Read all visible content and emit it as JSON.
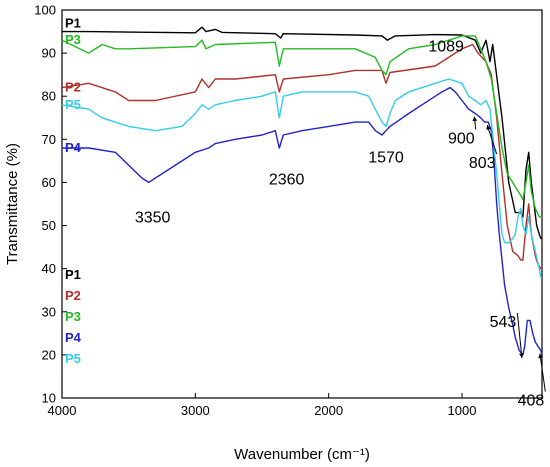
{
  "chart_data": {
    "type": "line",
    "xlabel": "Wavenumber (cm⁻¹)",
    "ylabel": "Transmittance (%)",
    "xlim": [
      4000,
      400
    ],
    "ylim": [
      10,
      100
    ],
    "x_reversed": true,
    "xticks": [
      4000,
      3000,
      2000,
      1000
    ],
    "yticks": [
      10,
      20,
      30,
      40,
      50,
      60,
      70,
      80,
      90,
      100
    ],
    "grid": false,
    "legend_position": "left-middle",
    "series": [
      {
        "name": "P1",
        "color": "#000000",
        "points": [
          [
            4000,
            95
          ],
          [
            3800,
            95
          ],
          [
            3000,
            94.7
          ],
          [
            2950,
            96
          ],
          [
            2920,
            95
          ],
          [
            2850,
            95.5
          ],
          [
            2800,
            94.8
          ],
          [
            2400,
            94.5
          ],
          [
            2360,
            93.5
          ],
          [
            2340,
            94.5
          ],
          [
            1800,
            94.2
          ],
          [
            1600,
            94
          ],
          [
            1560,
            93
          ],
          [
            1500,
            94
          ],
          [
            1200,
            94.3
          ],
          [
            1000,
            94.2
          ],
          [
            900,
            93
          ],
          [
            860,
            90
          ],
          [
            820,
            93
          ],
          [
            790,
            88
          ],
          [
            770,
            92
          ],
          [
            700,
            75
          ],
          [
            650,
            60
          ],
          [
            600,
            53
          ],
          [
            560,
            53
          ],
          [
            543,
            52
          ],
          [
            520,
            63
          ],
          [
            500,
            67
          ],
          [
            480,
            60
          ],
          [
            440,
            50
          ],
          [
            420,
            48
          ],
          [
            408,
            47
          ],
          [
            400,
            47
          ]
        ]
      },
      {
        "name": "P2",
        "color": "#b0302a",
        "points": [
          [
            4000,
            82
          ],
          [
            3800,
            83
          ],
          [
            3600,
            81
          ],
          [
            3500,
            79
          ],
          [
            3300,
            79
          ],
          [
            3000,
            81
          ],
          [
            2950,
            84
          ],
          [
            2900,
            82
          ],
          [
            2850,
            84
          ],
          [
            2700,
            84
          ],
          [
            2400,
            85
          ],
          [
            2370,
            81
          ],
          [
            2340,
            84
          ],
          [
            2000,
            85
          ],
          [
            1800,
            86
          ],
          [
            1600,
            86
          ],
          [
            1570,
            83
          ],
          [
            1540,
            85.5
          ],
          [
            1200,
            87
          ],
          [
            1100,
            89
          ],
          [
            1000,
            91
          ],
          [
            920,
            92
          ],
          [
            880,
            90
          ],
          [
            820,
            88
          ],
          [
            780,
            85
          ],
          [
            740,
            75
          ],
          [
            700,
            62
          ],
          [
            660,
            50
          ],
          [
            620,
            44
          ],
          [
            580,
            43
          ],
          [
            560,
            42
          ],
          [
            543,
            42
          ],
          [
            520,
            50
          ],
          [
            500,
            55
          ],
          [
            480,
            48
          ],
          [
            450,
            43
          ],
          [
            430,
            41
          ],
          [
            408,
            40
          ],
          [
            400,
            40
          ]
        ]
      },
      {
        "name": "P3",
        "color": "#22bb22",
        "points": [
          [
            4000,
            93
          ],
          [
            3800,
            90
          ],
          [
            3700,
            92
          ],
          [
            3600,
            91
          ],
          [
            3500,
            91
          ],
          [
            3000,
            91.5
          ],
          [
            2950,
            93
          ],
          [
            2920,
            91
          ],
          [
            2850,
            92
          ],
          [
            2400,
            92.5
          ],
          [
            2370,
            87
          ],
          [
            2340,
            91
          ],
          [
            2000,
            91
          ],
          [
            1800,
            91
          ],
          [
            1650,
            89
          ],
          [
            1600,
            86
          ],
          [
            1570,
            85
          ],
          [
            1540,
            88
          ],
          [
            1400,
            91
          ],
          [
            1200,
            92
          ],
          [
            1000,
            94
          ],
          [
            900,
            94
          ],
          [
            860,
            91
          ],
          [
            820,
            88
          ],
          [
            780,
            84
          ],
          [
            740,
            76
          ],
          [
            700,
            68
          ],
          [
            660,
            62
          ],
          [
            620,
            60
          ],
          [
            580,
            58
          ],
          [
            560,
            57
          ],
          [
            543,
            56
          ],
          [
            520,
            60
          ],
          [
            500,
            64
          ],
          [
            480,
            58
          ],
          [
            450,
            54
          ],
          [
            420,
            52
          ],
          [
            400,
            52
          ]
        ]
      },
      {
        "name": "P4",
        "color": "#2222cc",
        "points": [
          [
            4000,
            68
          ],
          [
            3800,
            68
          ],
          [
            3600,
            67
          ],
          [
            3500,
            64
          ],
          [
            3400,
            61
          ],
          [
            3350,
            60
          ],
          [
            3300,
            61
          ],
          [
            3200,
            63
          ],
          [
            3100,
            65
          ],
          [
            3000,
            67
          ],
          [
            2900,
            68
          ],
          [
            2850,
            69
          ],
          [
            2700,
            70
          ],
          [
            2500,
            71
          ],
          [
            2400,
            72
          ],
          [
            2370,
            68
          ],
          [
            2340,
            71
          ],
          [
            2200,
            72
          ],
          [
            2000,
            73
          ],
          [
            1800,
            74
          ],
          [
            1700,
            74
          ],
          [
            1650,
            72
          ],
          [
            1600,
            71
          ],
          [
            1570,
            72
          ],
          [
            1540,
            73
          ],
          [
            1400,
            76
          ],
          [
            1300,
            78
          ],
          [
            1200,
            80
          ],
          [
            1150,
            81
          ],
          [
            1089,
            82
          ],
          [
            1050,
            81
          ],
          [
            1000,
            79
          ],
          [
            950,
            77
          ],
          [
            900,
            76
          ],
          [
            860,
            75
          ],
          [
            830,
            74
          ],
          [
            803,
            74
          ],
          [
            780,
            72
          ],
          [
            760,
            65
          ],
          [
            740,
            55
          ],
          [
            720,
            48
          ],
          [
            700,
            42
          ],
          [
            680,
            36
          ],
          [
            650,
            31
          ],
          [
            620,
            27
          ],
          [
            600,
            24
          ],
          [
            570,
            21
          ],
          [
            543,
            20
          ],
          [
            530,
            22
          ],
          [
            510,
            28
          ],
          [
            490,
            28
          ],
          [
            470,
            25
          ],
          [
            450,
            23
          ],
          [
            430,
            22
          ],
          [
            408,
            21
          ],
          [
            400,
            20
          ]
        ]
      },
      {
        "name": "P5",
        "color": "#33ccee",
        "points": [
          [
            4000,
            78
          ],
          [
            3800,
            77
          ],
          [
            3700,
            75
          ],
          [
            3600,
            74
          ],
          [
            3500,
            73
          ],
          [
            3300,
            72
          ],
          [
            3100,
            73
          ],
          [
            3000,
            76
          ],
          [
            2950,
            78
          ],
          [
            2900,
            77
          ],
          [
            2850,
            78
          ],
          [
            2700,
            79
          ],
          [
            2500,
            80
          ],
          [
            2400,
            81
          ],
          [
            2370,
            75
          ],
          [
            2340,
            80
          ],
          [
            2200,
            81
          ],
          [
            2000,
            81
          ],
          [
            1800,
            81
          ],
          [
            1700,
            80
          ],
          [
            1650,
            77
          ],
          [
            1600,
            74
          ],
          [
            1570,
            73
          ],
          [
            1540,
            76
          ],
          [
            1500,
            79
          ],
          [
            1400,
            81
          ],
          [
            1300,
            82
          ],
          [
            1200,
            83
          ],
          [
            1100,
            84
          ],
          [
            1000,
            83
          ],
          [
            950,
            80
          ],
          [
            900,
            79
          ],
          [
            860,
            78
          ],
          [
            820,
            79
          ],
          [
            790,
            77
          ],
          [
            760,
            68
          ],
          [
            740,
            62
          ],
          [
            720,
            55
          ],
          [
            700,
            48
          ],
          [
            680,
            46
          ],
          [
            650,
            46
          ],
          [
            620,
            47
          ],
          [
            600,
            48
          ],
          [
            580,
            52
          ],
          [
            560,
            54
          ],
          [
            543,
            50
          ],
          [
            520,
            48
          ],
          [
            500,
            52
          ],
          [
            480,
            48
          ],
          [
            450,
            44
          ],
          [
            420,
            40
          ],
          [
            408,
            38
          ],
          [
            400,
            38
          ]
        ]
      }
    ],
    "curve_labels": [
      "P1",
      "P3",
      "P2",
      "P5",
      "P4"
    ],
    "legend": [
      {
        "label": "P1",
        "color": "#000000"
      },
      {
        "label": "P2",
        "color": "#b0302a"
      },
      {
        "label": "P3",
        "color": "#22bb22"
      },
      {
        "label": "P4",
        "color": "#2222cc"
      },
      {
        "label": "P5",
        "color": "#33ccee"
      }
    ],
    "annotations": [
      {
        "text": "3350",
        "x": 3350
      },
      {
        "text": "2360",
        "x": 2360
      },
      {
        "text": "1570",
        "x": 1570
      },
      {
        "text": "1089",
        "x": 1089
      },
      {
        "text": "900",
        "x": 900
      },
      {
        "text": "803",
        "x": 803
      },
      {
        "text": "543",
        "x": 543
      },
      {
        "text": "408",
        "x": 408
      }
    ]
  }
}
